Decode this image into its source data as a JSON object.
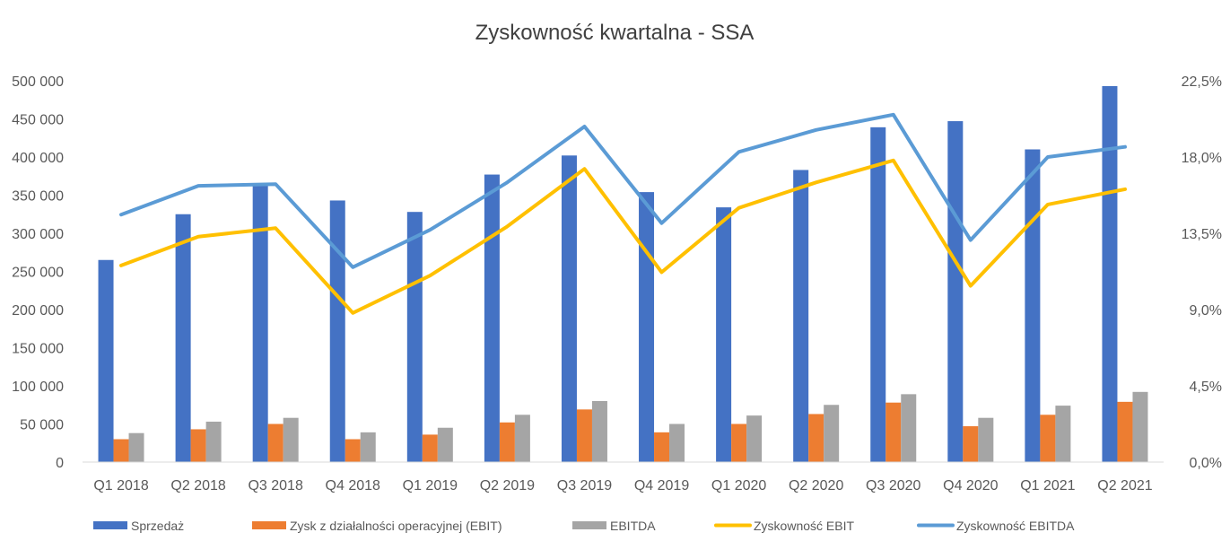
{
  "chart_data": {
    "type": "bar",
    "title": "Zyskowność kwartalna - SSA",
    "categories": [
      "Q1 2018",
      "Q2 2018",
      "Q3 2018",
      "Q4 2018",
      "Q1 2019",
      "Q2 2019",
      "Q3 2019",
      "Q4 2019",
      "Q1 2020",
      "Q2 2020",
      "Q3 2020",
      "Q4 2020",
      "Q1 2021",
      "Q2 2021"
    ],
    "y_left": {
      "ylim": [
        0,
        500000
      ],
      "ticks": [
        0,
        50000,
        100000,
        150000,
        200000,
        250000,
        300000,
        350000,
        400000,
        450000,
        500000
      ],
      "tick_labels": [
        "0",
        "50 000",
        "100 000",
        "150 000",
        "200 000",
        "250 000",
        "300 000",
        "350 000",
        "400 000",
        "450 000",
        "500 000"
      ]
    },
    "y_right": {
      "ylim": [
        0,
        22.5
      ],
      "ticks": [
        0,
        4.5,
        9,
        13.5,
        18,
        22.5
      ],
      "tick_labels": [
        "0,0%",
        "4,5%",
        "9,0%",
        "13,5%",
        "18,0%",
        "22,5%"
      ]
    },
    "bar_series": [
      {
        "name": "Sprzedaż",
        "color": "#4472C4",
        "values": [
          265000,
          325000,
          365000,
          343000,
          328000,
          377000,
          402000,
          354000,
          334000,
          383000,
          439000,
          447000,
          410000,
          493000
        ]
      },
      {
        "name": "Zysk z działalności operacyjnej (EBIT)",
        "color": "#ED7D31",
        "values": [
          30000,
          43000,
          50000,
          30000,
          36000,
          52000,
          69000,
          39000,
          50000,
          63000,
          78000,
          47000,
          62000,
          79000
        ]
      },
      {
        "name": "EBITDA",
        "color": "#A5A5A5",
        "values": [
          38000,
          53000,
          58000,
          39000,
          45000,
          62000,
          80000,
          50000,
          61000,
          75000,
          89000,
          58000,
          74000,
          92000
        ]
      }
    ],
    "line_series": [
      {
        "name": "Zyskowność EBIT",
        "color": "#FFC000",
        "values": [
          11.6,
          13.3,
          13.8,
          8.8,
          11.0,
          13.9,
          17.3,
          11.2,
          15.0,
          16.5,
          17.8,
          10.4,
          15.2,
          16.1
        ]
      },
      {
        "name": "Zyskowność EBITDA",
        "color": "#5B9BD5",
        "values": [
          14.6,
          16.3,
          16.4,
          11.5,
          13.7,
          16.5,
          19.8,
          14.1,
          18.3,
          19.6,
          20.5,
          13.1,
          18.0,
          18.6
        ]
      }
    ],
    "legend_position": "bottom",
    "grid": false
  }
}
